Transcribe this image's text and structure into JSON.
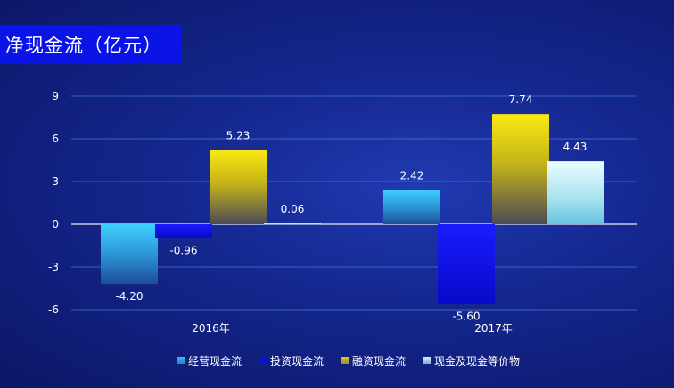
{
  "header": {
    "title": "净现金流（亿元）"
  },
  "colors": {
    "operating": "#35b6ee",
    "investing": "#0a10e0",
    "financing": "#d9c912",
    "cash": "#c6f1f4",
    "axis": "#ffffff",
    "grid": "#3d7fd6",
    "text": "#ffffff"
  },
  "chart_data": {
    "type": "bar",
    "title": "净现金流（亿元）",
    "categories": [
      "2016年",
      "2017年"
    ],
    "series": [
      {
        "name": "经营现金流",
        "values": [
          -4.2,
          2.42
        ]
      },
      {
        "name": "投资现金流",
        "values": [
          -0.96,
          -5.6
        ]
      },
      {
        "name": "融资现金流",
        "values": [
          5.23,
          7.74
        ]
      },
      {
        "name": "现金及现金等价物",
        "values": [
          0.06,
          4.43
        ]
      }
    ],
    "data_labels": [
      [
        "-4.20",
        "-0.96",
        "5.23",
        "0.06"
      ],
      [
        "2.42",
        "-5.60",
        "7.74",
        "4.43"
      ]
    ],
    "yticks": [
      9,
      6,
      3,
      0,
      -3,
      -6
    ],
    "ytick_labels": [
      "9",
      "6",
      "3",
      "0",
      "-3",
      "-6"
    ],
    "ylim": [
      -6,
      9
    ],
    "grid": true,
    "legend_position": "bottom"
  },
  "legend": {
    "items": [
      {
        "label": "经营现金流",
        "color": "#35b6ee"
      },
      {
        "label": "投资现金流",
        "color": "#0a10e0"
      },
      {
        "label": "融资现金流",
        "color": "#d9c912"
      },
      {
        "label": "现金及现金等价物",
        "color": "#c6f1f4"
      }
    ]
  }
}
